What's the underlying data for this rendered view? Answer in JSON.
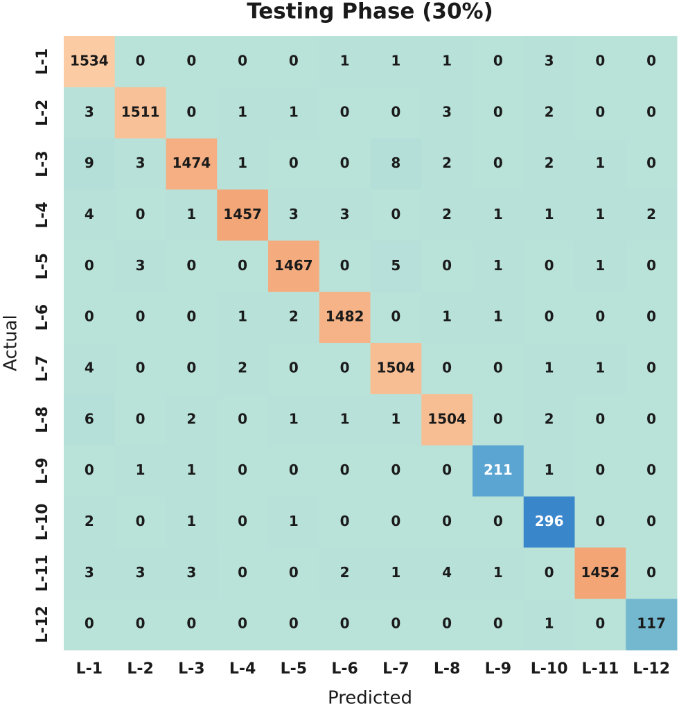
{
  "chart_data": {
    "type": "heatmap",
    "title": "Testing Phase (30%)",
    "x_label": "Predicted",
    "y_label": "Actual",
    "x_categories": [
      "L-1",
      "L-2",
      "L-3",
      "L-4",
      "L-5",
      "L-6",
      "L-7",
      "L-8",
      "L-9",
      "L-10",
      "L-11",
      "L-12"
    ],
    "y_categories": [
      "L-1",
      "L-2",
      "L-3",
      "L-4",
      "L-5",
      "L-6",
      "L-7",
      "L-8",
      "L-9",
      "L-10",
      "L-11",
      "L-12"
    ],
    "values": [
      [
        1534,
        0,
        0,
        0,
        0,
        1,
        1,
        1,
        0,
        3,
        0,
        0
      ],
      [
        3,
        1511,
        0,
        1,
        1,
        0,
        0,
        3,
        0,
        2,
        0,
        0
      ],
      [
        9,
        3,
        1474,
        1,
        0,
        0,
        8,
        2,
        0,
        2,
        1,
        0
      ],
      [
        4,
        0,
        1,
        1457,
        3,
        3,
        0,
        2,
        1,
        1,
        1,
        2
      ],
      [
        0,
        3,
        0,
        0,
        1467,
        0,
        5,
        0,
        1,
        0,
        1,
        0
      ],
      [
        0,
        0,
        0,
        1,
        2,
        1482,
        0,
        1,
        1,
        0,
        0,
        0
      ],
      [
        4,
        0,
        0,
        2,
        0,
        0,
        1504,
        0,
        0,
        1,
        1,
        0
      ],
      [
        6,
        0,
        2,
        0,
        1,
        1,
        1,
        1504,
        0,
        2,
        0,
        0
      ],
      [
        0,
        1,
        1,
        0,
        0,
        0,
        0,
        0,
        211,
        1,
        0,
        0
      ],
      [
        2,
        0,
        1,
        0,
        1,
        0,
        0,
        0,
        0,
        296,
        0,
        0
      ],
      [
        3,
        3,
        3,
        0,
        0,
        2,
        1,
        4,
        1,
        0,
        1452,
        0
      ],
      [
        0,
        0,
        0,
        0,
        0,
        0,
        0,
        0,
        0,
        1,
        0,
        117
      ]
    ],
    "colormap": [
      "#b9e2d9",
      "#74b8d0",
      "#5aa4d2",
      "#3a86cb",
      "#6a6fa0",
      "#f2a070",
      "#fbcca4"
    ]
  }
}
